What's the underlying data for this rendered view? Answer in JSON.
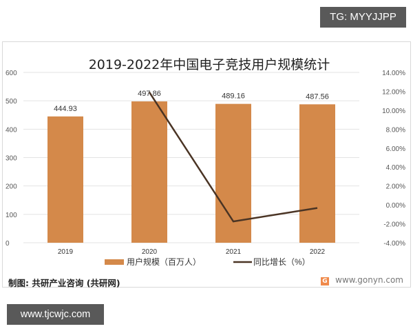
{
  "badges": {
    "top_right": "TG: MYYJJPP",
    "bottom_left": "www.tjcwjc.com"
  },
  "footer": {
    "source": "制图: 共研产业咨询 (共研网)",
    "website": "www.gonyn.com",
    "logo_letter": "G"
  },
  "chart_data": {
    "type": "bar",
    "title": "2019-2022年中国电子竞技用户规模统计",
    "categories": [
      "2019",
      "2020",
      "2021",
      "2022"
    ],
    "series": [
      {
        "name": "用户规模（百万人）",
        "kind": "bar",
        "axis": "left",
        "color": "#d4894a",
        "values": [
          444.93,
          497.86,
          489.16,
          487.56
        ],
        "labels": [
          "444.93",
          "497.86",
          "489.16",
          "487.56"
        ]
      },
      {
        "name": "同比增长（%）",
        "kind": "line",
        "axis": "right",
        "color": "#4a3424",
        "values": [
          null,
          11.9,
          -1.75,
          -0.33
        ]
      }
    ],
    "left_axis": {
      "min": 0,
      "max": 600,
      "ticks": [
        "0",
        "100",
        "200",
        "300",
        "400",
        "500",
        "600"
      ]
    },
    "right_axis": {
      "min": -4,
      "max": 14,
      "ticks": [
        "-4.00%",
        "-2.00%",
        "0.00%",
        "2.00%",
        "4.00%",
        "6.00%",
        "8.00%",
        "10.00%",
        "12.00%",
        "14.00%"
      ]
    },
    "grid": true,
    "legend_position": "bottom",
    "xlabel": "",
    "ylabel": ""
  }
}
